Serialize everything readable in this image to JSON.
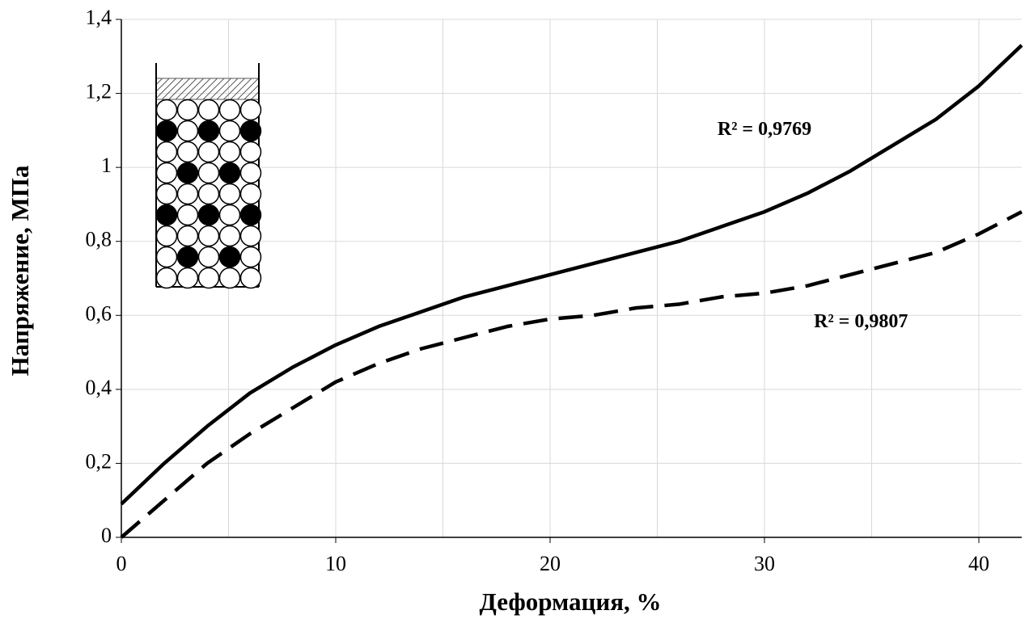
{
  "chart_data": {
    "type": "line",
    "x_label": "Деформация, %",
    "y_label": "Напряжение, МПа",
    "x": [
      0,
      2,
      4,
      6,
      8,
      10,
      12,
      14,
      16,
      18,
      20,
      22,
      24,
      26,
      28,
      30,
      32,
      34,
      36,
      38,
      40,
      42
    ],
    "series": [
      {
        "color": "#000000",
        "dash": "solid",
        "values": [
          0.09,
          0.2,
          0.3,
          0.39,
          0.46,
          0.52,
          0.57,
          0.61,
          0.65,
          0.68,
          0.71,
          0.74,
          0.77,
          0.8,
          0.84,
          0.88,
          0.93,
          0.99,
          1.06,
          1.13,
          1.22,
          1.33
        ]
      },
      {
        "color": "#000000",
        "dash": "dashed",
        "values": [
          0,
          0.1,
          0.2,
          0.28,
          0.35,
          0.42,
          0.47,
          0.51,
          0.54,
          0.57,
          0.59,
          0.6,
          0.62,
          0.63,
          0.65,
          0.66,
          0.68,
          0.71,
          0.74,
          0.77,
          0.82,
          0.88
        ]
      }
    ],
    "annotations": [
      {
        "text": "R² = 0,9769",
        "x": 30,
        "y": 1.1
      },
      {
        "text": "R² = 0,9807",
        "x": 34.5,
        "y": 0.58
      }
    ],
    "xlim": [
      0,
      42
    ],
    "ylim": [
      0,
      1.4
    ],
    "xticks": [
      0,
      10,
      20,
      30,
      40
    ],
    "xgrid": [
      5,
      15,
      25,
      35
    ],
    "yticks": [
      0,
      {
        "value": 0.2,
        "label": "0,2"
      },
      {
        "value": 0.4,
        "label": "0,4"
      },
      {
        "value": 0.6,
        "label": "0,6"
      },
      {
        "value": 0.8,
        "label": "0,8"
      },
      1,
      {
        "value": 1.2,
        "label": "1,2"
      },
      {
        "value": 1.4,
        "label": "1,4"
      }
    ],
    "grid": true
  }
}
